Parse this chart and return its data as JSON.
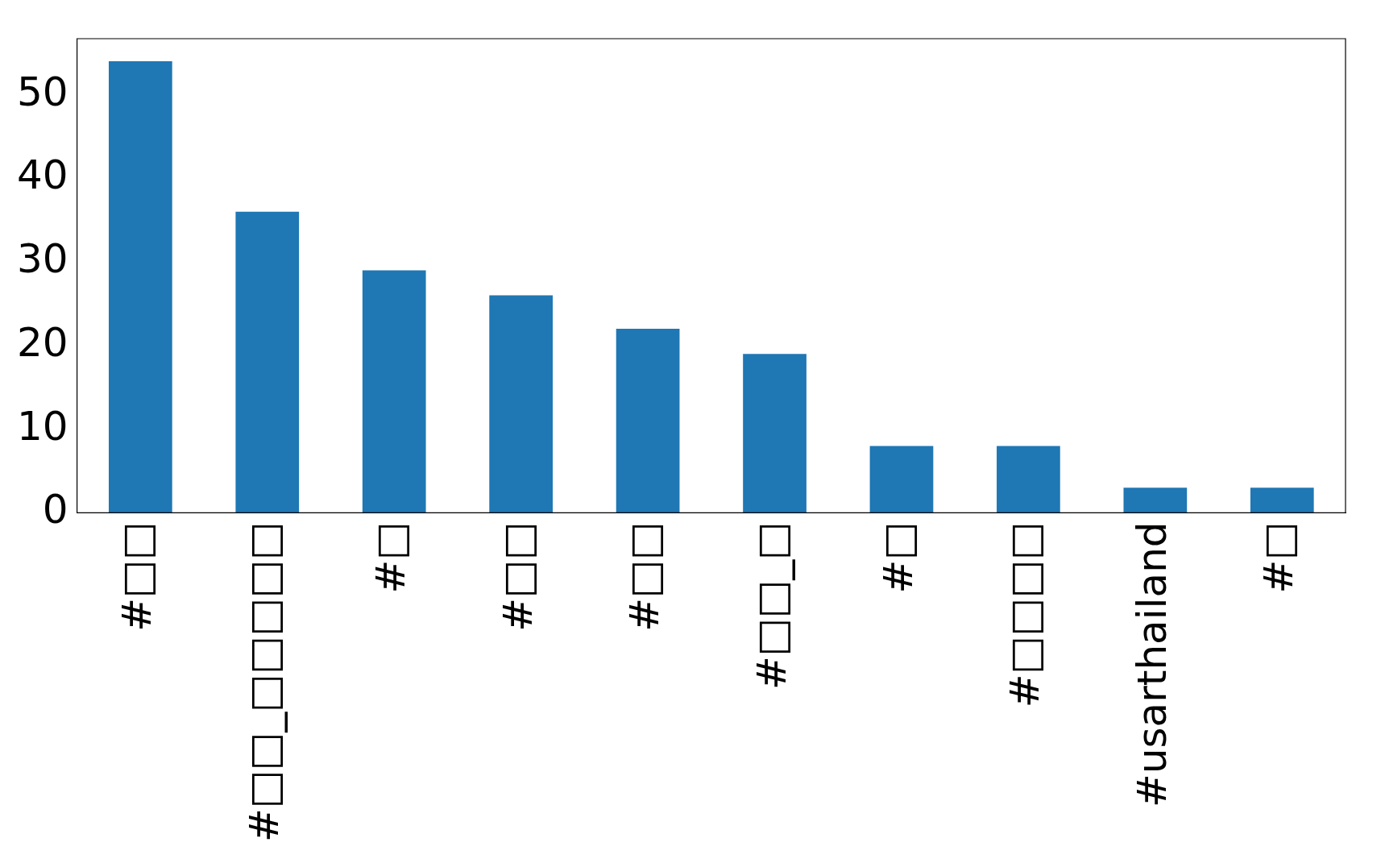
{
  "chart_data": {
    "type": "bar",
    "categories": [
      "#□□",
      "#□□_□□□□□",
      "#□",
      "#□□",
      "#□□",
      "#□□_□",
      "#□",
      "#□□□□",
      "#usarthailand",
      "#□"
    ],
    "values": [
      54,
      36,
      29,
      26,
      22,
      19,
      8,
      8,
      3,
      3
    ],
    "color": "#1f77b4",
    "ylim": [
      0,
      56.7
    ],
    "yticks": [
      0,
      10,
      20,
      30,
      40,
      50
    ],
    "grid": false,
    "legend": false
  }
}
